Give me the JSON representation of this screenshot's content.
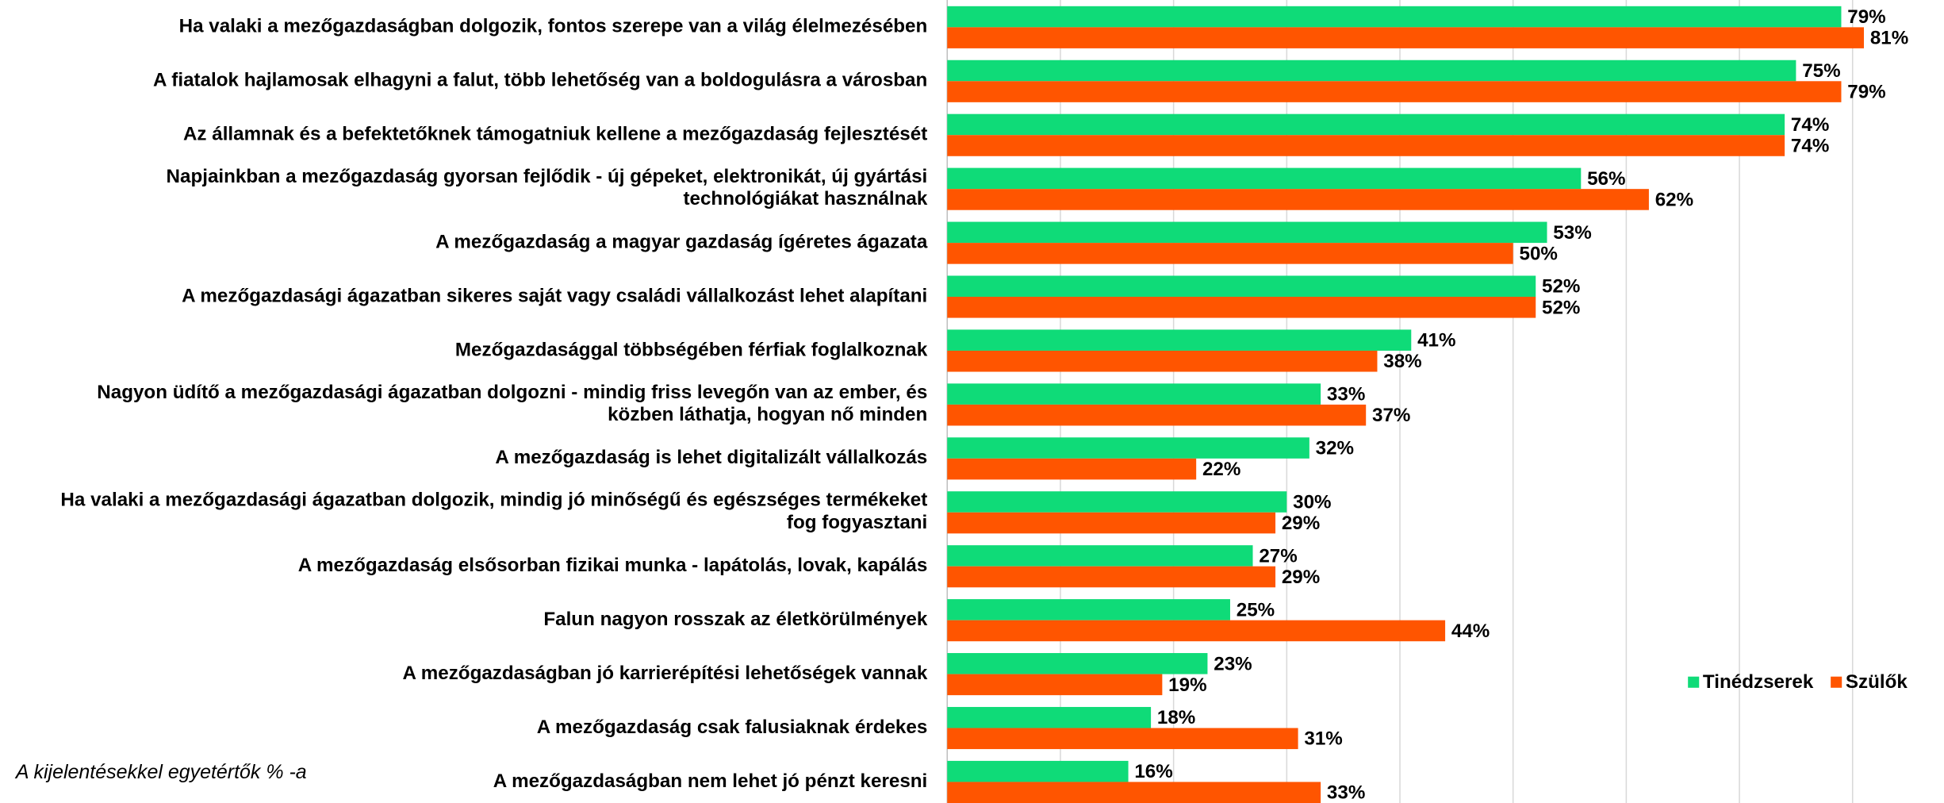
{
  "chart_data": {
    "type": "hbar",
    "annotation": "A kijelentésekkel egyetértők % -a",
    "categories": [
      "Ha valaki a mezőgazdaságban dolgozik, fontos szerepe van a világ élelmezésében",
      "A fiatalok hajlamosak elhagyni a falut, több lehetőség van a boldogulásra a városban",
      "Az államnak és a befektetőknek támogatniuk kellene a mezőgazdaság fejlesztését",
      "Napjainkban a mezőgazdaság gyorsan fejlődik - új gépeket, elektronikát, új gyártási\ntechnológiákat használnak",
      "A mezőgazdaság a magyar gazdaság ígéretes ágazata",
      "A mezőgazdasági ágazatban sikeres saját vagy családi vállalkozást lehet alapítani",
      "Mezőgazdasággal többségében férfiak foglalkoznak",
      "Nagyon üdítő a mezőgazdasági ágazatban dolgozni - mindig friss levegőn van az ember, és\nközben láthatja, hogyan nő minden",
      "A mezőgazdaság is lehet digitalizált vállalkozás",
      "Ha valaki a mezőgazdasági ágazatban dolgozik, mindig jó minőségű és egészséges termékeket\nfog fogyasztani",
      "A mezőgazdaság elsősorban fizikai munka - lapátolás, lovak, kapálás",
      "Falun nagyon rosszak az életkörülmények",
      "A mezőgazdaságban jó karrierépítési lehetőségek vannak",
      "A mezőgazdaság csak falusiaknak érdekes",
      "A mezőgazdaságban nem lehet jó pénzt keresni"
    ],
    "series": [
      {
        "name": "Tinédzserek",
        "color": "#0fdb78",
        "values": [
          79,
          75,
          74,
          56,
          53,
          52,
          41,
          33,
          32,
          30,
          27,
          25,
          23,
          18,
          16
        ],
        "value_labels": [
          "79%",
          "75%",
          "74%",
          "56%",
          "53%",
          "52%",
          "41%",
          "33%",
          "32%",
          "30%",
          "27%",
          "25%",
          "23%",
          "18%",
          "16%"
        ]
      },
      {
        "name": "Szülők",
        "color": "#ff5500",
        "values": [
          81,
          79,
          74,
          62,
          50,
          52,
          38,
          37,
          22,
          29,
          29,
          44,
          19,
          31,
          33
        ],
        "value_labels": [
          "81%",
          "79%",
          "74%",
          "62%",
          "50%",
          "52%",
          "38%",
          "37%",
          "22%",
          "29%",
          "29%",
          "44%",
          "19%",
          "31%",
          "33%"
        ]
      }
    ],
    "xlim": [
      0,
      88
    ],
    "xticks": [
      0,
      10,
      20,
      30,
      40,
      50,
      60,
      70,
      80
    ],
    "grid": true,
    "legend": "right"
  }
}
